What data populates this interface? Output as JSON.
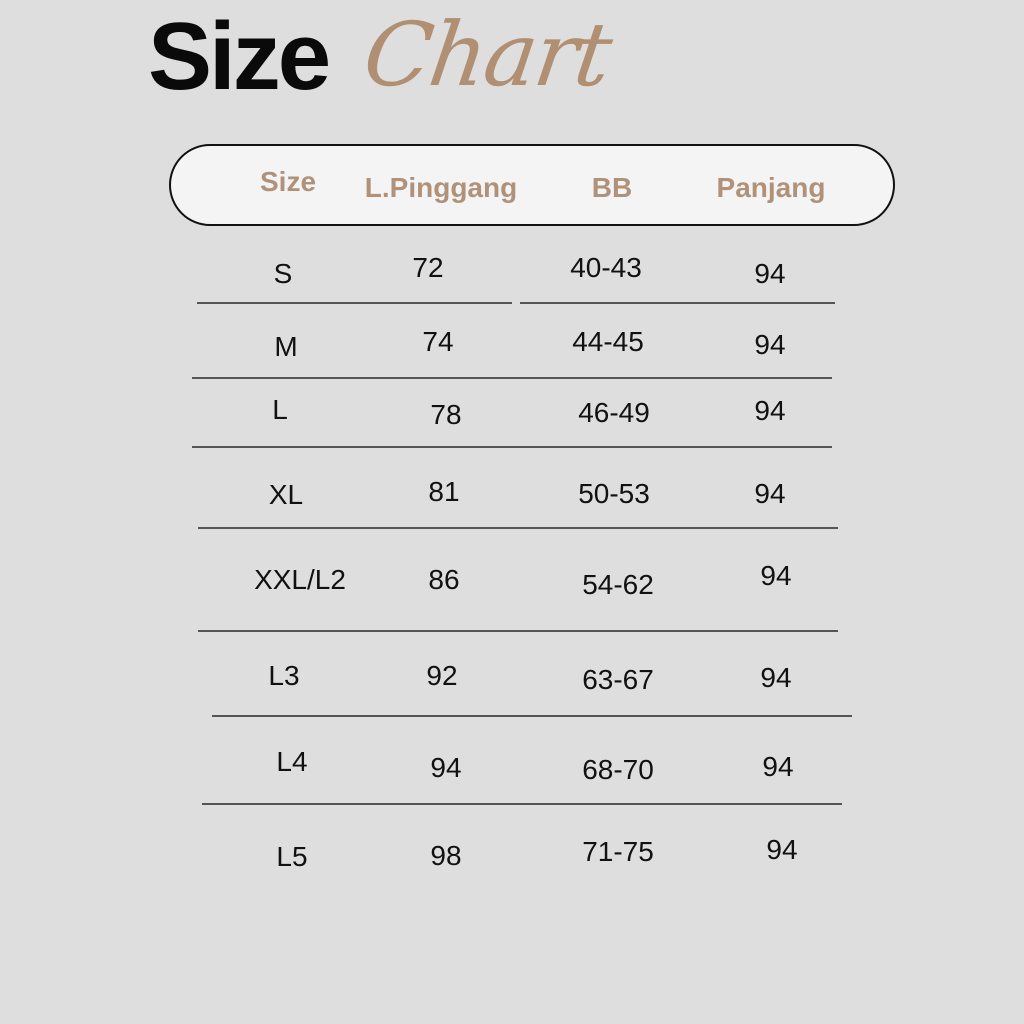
{
  "title": {
    "main": "Size",
    "script": "Chart"
  },
  "colors": {
    "background": "#dedede",
    "accent": "#b08f72",
    "text": "#111111"
  },
  "table": {
    "headers": [
      "Size",
      "L.Pinggang",
      "BB",
      "Panjang"
    ],
    "rows": [
      [
        "S",
        "72",
        "40-43",
        "94"
      ],
      [
        "M",
        "74",
        "44-45",
        "94"
      ],
      [
        "L",
        "78",
        "46-49",
        "94"
      ],
      [
        "XL",
        "81",
        "50-53",
        "94"
      ],
      [
        "XXL/L2",
        "86",
        "54-62",
        "94"
      ],
      [
        "L3",
        "92",
        "63-67",
        "94"
      ],
      [
        "L4",
        "94",
        "68-70",
        "94"
      ],
      [
        "L5",
        "98",
        "71-75",
        "94"
      ]
    ]
  }
}
